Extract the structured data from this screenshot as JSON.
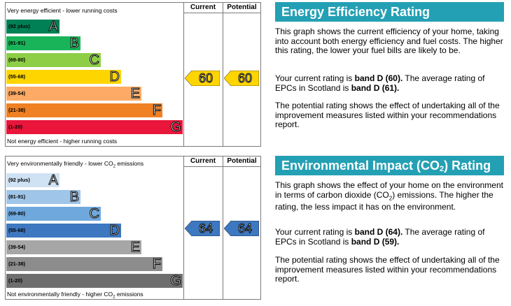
{
  "energy": {
    "top_caption": "Very energy efficient - lower running costs",
    "bottom_caption": "Not energy efficient - higher running costs",
    "col_current": "Current",
    "col_potential": "Potential",
    "bands": [
      {
        "range": "(92 plus)",
        "letter": "A",
        "color": "#008054"
      },
      {
        "range": "(81-91)",
        "letter": "B",
        "color": "#19b459"
      },
      {
        "range": "(69-80)",
        "letter": "C",
        "color": "#8dce46"
      },
      {
        "range": "(55-68)",
        "letter": "D",
        "color": "#ffd500"
      },
      {
        "range": "(39-54)",
        "letter": "E",
        "color": "#fcaa65"
      },
      {
        "range": "(21-38)",
        "letter": "F",
        "color": "#ef8023"
      },
      {
        "range": "(1-20)",
        "letter": "G",
        "color": "#e9153b"
      }
    ],
    "current": "60",
    "potential": "60",
    "arrow_color": "#ffd500",
    "title": "Energy Efficiency Rating",
    "p1": "This graph shows the current efficiency of your home, taking into account both energy efficiency and fuel costs. The higher this rating, the lower your fuel bills are likely to be.",
    "p2_a": "Your current rating is ",
    "p2_b": "band D (60).",
    "p2_c": " The average rating of EPCs in Scotland is ",
    "p2_d": "band D (61).",
    "p3": "The potential rating shows the effect of undertaking all of the improvement measures listed within your recommendations report."
  },
  "environment": {
    "top_caption_a": "Very environmentally friendly - lower CO",
    "top_caption_sub": "2",
    "top_caption_b": " emissions",
    "bottom_caption_a": "Not environmentally friendly - higher CO",
    "bottom_caption_sub": "2",
    "bottom_caption_b": " emissions",
    "col_current": "Current",
    "col_potential": "Potential",
    "bands": [
      {
        "range": "(92 plus)",
        "letter": "A",
        "color": "#cfe2f3"
      },
      {
        "range": "(81-91)",
        "letter": "B",
        "color": "#9fc5e8"
      },
      {
        "range": "(69-80)",
        "letter": "C",
        "color": "#6fa8dc"
      },
      {
        "range": "(55-68)",
        "letter": "D",
        "color": "#3d78c0"
      },
      {
        "range": "(39-54)",
        "letter": "E",
        "color": "#a6a6a6"
      },
      {
        "range": "(21-38)",
        "letter": "F",
        "color": "#8c8c8c"
      },
      {
        "range": "(1-20)",
        "letter": "G",
        "color": "#6e6e6e"
      }
    ],
    "current": "64",
    "potential": "64",
    "arrow_color": "#3d78c0",
    "title_a": "Environmental Impact (CO",
    "title_sub": "2",
    "title_b": ") Rating",
    "p1_a": "This graph shows the effect of your home on the environment in terms of carbon dioxide (CO",
    "p1_sub": "2",
    "p1_b": ") emissions. The higher the rating, the less impact it has on the environment.",
    "p2_a": "Your current rating is ",
    "p2_b": "band D (64).",
    "p2_c": " The average rating of EPCs in Scotland is ",
    "p2_d": "band D (59).",
    "p3": "The potential rating shows the effect of undertaking all of the improvement measures listed within your recommendations report."
  }
}
